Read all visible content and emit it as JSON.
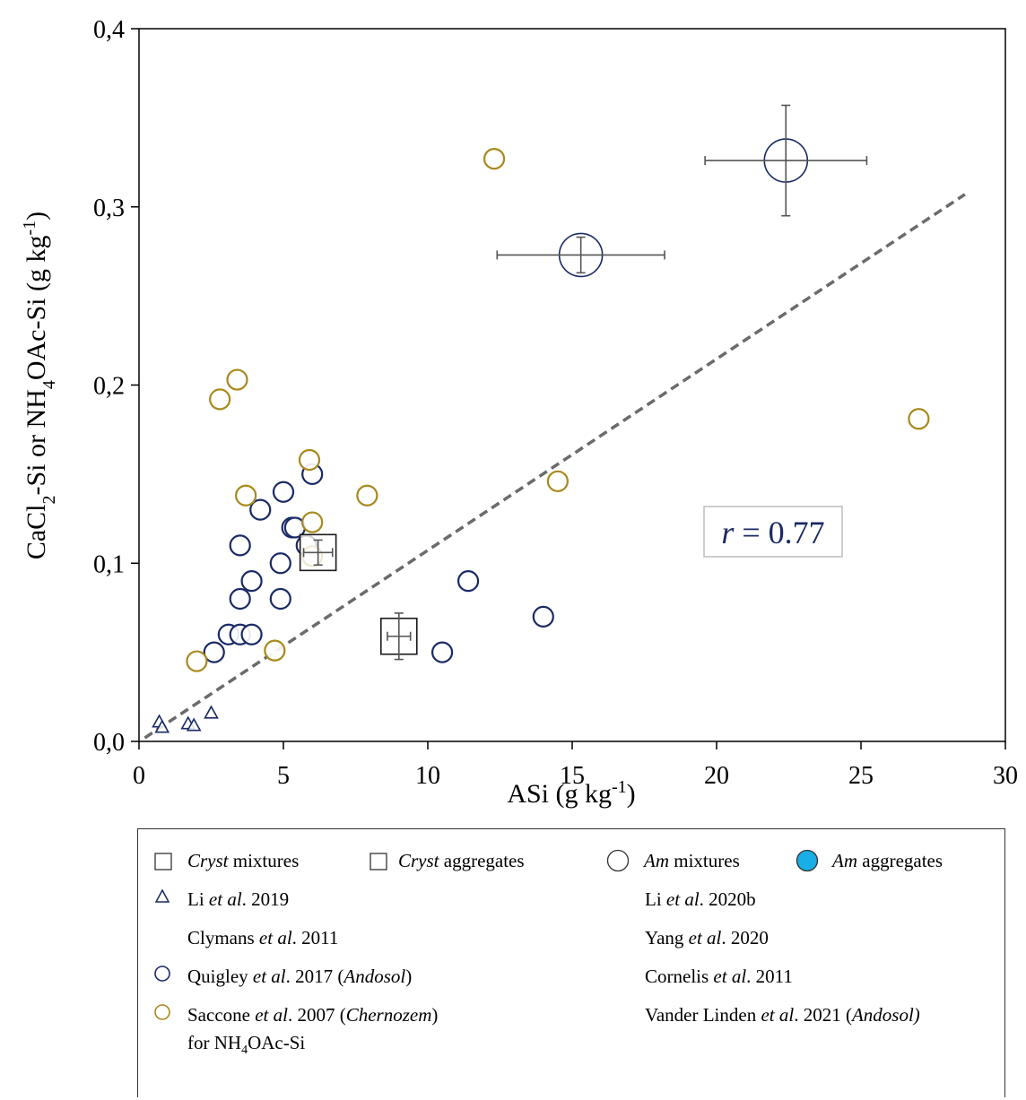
{
  "chart_data": {
    "type": "scatter",
    "xlabel": "ASi (g kg-1)",
    "ylabel": "CaCl2-Si or NH4OAc-Si  (g kg-1)",
    "xlim": [
      0,
      30
    ],
    "ylim": [
      0,
      0.4
    ],
    "x_ticks": [
      "0",
      "5",
      "10",
      "15",
      "20",
      "25",
      "30"
    ],
    "y_ticks": [
      "0,0",
      "0,1",
      "0,2",
      "0,3",
      "0,4"
    ],
    "annotation": "r = 0.77",
    "trendline": {
      "x": [
        0.2,
        28.6
      ],
      "y": [
        0.002,
        0.307
      ],
      "style": "dashed",
      "color": "#6b6b6b"
    },
    "series": [
      {
        "name": "Li et al. 2019",
        "marker": "triangle",
        "color": "#1a2a66",
        "points": [
          [
            0.7,
            0.011
          ],
          [
            0.8,
            0.008
          ],
          [
            1.7,
            0.01
          ],
          [
            1.9,
            0.009
          ],
          [
            2.5,
            0.016
          ]
        ]
      },
      {
        "name": "Quigley et al. 2017 (Andosol)",
        "marker": "circle",
        "color": "#1a2a66",
        "points": [
          [
            2.6,
            0.05
          ],
          [
            3.1,
            0.06
          ],
          [
            3.5,
            0.06
          ],
          [
            3.9,
            0.06
          ],
          [
            3.5,
            0.08
          ],
          [
            3.9,
            0.09
          ],
          [
            3.5,
            0.11
          ],
          [
            4.2,
            0.13
          ],
          [
            4.9,
            0.1
          ],
          [
            4.9,
            0.08
          ],
          [
            5.0,
            0.14
          ],
          [
            5.3,
            0.12
          ],
          [
            5.4,
            0.12
          ],
          [
            5.8,
            0.11
          ],
          [
            6.0,
            0.15
          ],
          [
            10.5,
            0.05
          ],
          [
            11.4,
            0.09
          ],
          [
            14.0,
            0.07
          ]
        ]
      },
      {
        "name": "Saccone et al. 2007 (Chernozem) for NH4OAc-Si",
        "marker": "circle",
        "color": "#a8891c",
        "points": [
          [
            2.0,
            0.045
          ],
          [
            2.8,
            0.192
          ],
          [
            3.4,
            0.203
          ],
          [
            3.7,
            0.138
          ],
          [
            4.7,
            0.051
          ],
          [
            5.9,
            0.158
          ],
          [
            6.0,
            0.104
          ],
          [
            6.0,
            0.123
          ],
          [
            7.9,
            0.138
          ],
          [
            12.3,
            0.327
          ],
          [
            14.5,
            0.146
          ],
          [
            27.0,
            0.181
          ]
        ]
      },
      {
        "name": "Cryst mixtures",
        "marker": "square",
        "color": "#1a1a1a",
        "points": [
          [
            6.2,
            0.106,
            0.5,
            0.007
          ],
          [
            9.0,
            0.059,
            0.4,
            0.013
          ]
        ]
      },
      {
        "name": "Am mixtures",
        "marker": "circle-large",
        "color": "#1a2a66",
        "points": [
          [
            15.3,
            0.273,
            2.9,
            0.01
          ],
          [
            22.4,
            0.326,
            2.8,
            0.031
          ]
        ]
      }
    ]
  },
  "legend": {
    "cryst_mixtures": [
      "Cryst",
      " mixtures"
    ],
    "cryst_aggregates": [
      "Cryst",
      "  aggregates"
    ],
    "am_mixtures": [
      "Am",
      " mixtures"
    ],
    "am_aggregates": [
      "Am",
      " aggregates"
    ],
    "li2019": [
      "Li ",
      "et al",
      ". 2019"
    ],
    "li2020b": [
      "Li ",
      "et al",
      ". 2020b"
    ],
    "clymans": [
      "Clymans ",
      "et al",
      ". 2011"
    ],
    "yang": [
      "Yang ",
      "et al",
      ". 2020"
    ],
    "quigley": [
      "Quigley ",
      "et al",
      ". 2017 (",
      "Andosol",
      ")"
    ],
    "cornelis": [
      "Cornelis ",
      "et al",
      ". 2011"
    ],
    "saccone": [
      "Saccone ",
      "et al",
      ". 2007 (",
      "Chernozem",
      ")"
    ],
    "saccone_line2": [
      "for NH",
      "4",
      "OAc-Si"
    ],
    "vander": [
      "Vander Linden ",
      "et al",
      ". 2021 (",
      "Andosol)"
    ],
    "am_aggregates_color": "#19aee6"
  }
}
